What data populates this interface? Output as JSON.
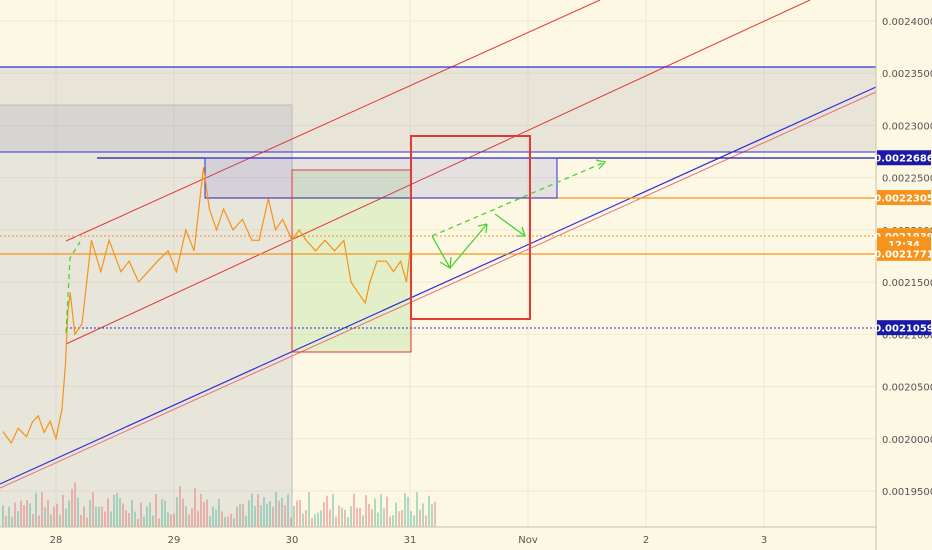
{
  "chart_data": {
    "type": "line",
    "title": "",
    "y_range": [
      0.00191,
      0.002425
    ],
    "x_range": [
      27.55,
      31.0
    ],
    "y_ticks": [
      "0.0024000",
      "0.0023500",
      "0.0023000",
      "0.0022500",
      "0.0022000",
      "0.0021500",
      "0.0021000",
      "0.0020500",
      "0.0020000",
      "0.0019500"
    ],
    "y_tick_values": [
      0.0024,
      0.00235,
      0.0023,
      0.00225,
      0.0022,
      0.00215,
      0.0021,
      0.00205,
      0.002,
      0.00195
    ],
    "x_ticks": [
      "28",
      "29",
      "30",
      "31",
      "Nov",
      "2",
      "3"
    ],
    "x_tick_values": [
      28,
      29,
      30,
      31,
      32,
      33,
      34
    ],
    "price_labels": [
      {
        "text": "0.0022686",
        "value": 0.0022686,
        "color": "#1a1aa6"
      },
      {
        "text": "0.0022305",
        "value": 0.0022305,
        "color": "#f7931a"
      },
      {
        "text": "0.0021939",
        "value": 0.0021939,
        "color": "#f7931a"
      },
      {
        "text": "12:34",
        "value": 0.002186,
        "color": "#f7931a"
      },
      {
        "text": "0.0021771",
        "value": 0.0021771,
        "color": "#f7931a"
      },
      {
        "text": "0.0021059",
        "value": 0.0021059,
        "color": "#1a1aa6"
      }
    ],
    "series": [
      {
        "values": [
          [
            27.55,
            0.002007
          ],
          [
            27.62,
            0.001996
          ],
          [
            27.68,
            0.00201
          ],
          [
            27.75,
            0.002002
          ],
          [
            27.8,
            0.002016
          ],
          [
            27.85,
            0.002022
          ],
          [
            27.9,
            0.002006
          ],
          [
            27.95,
            0.002017
          ],
          [
            28.0,
            0.002
          ],
          [
            28.05,
            0.002028
          ],
          [
            28.08,
            0.00207
          ],
          [
            28.1,
            0.00212
          ],
          [
            28.12,
            0.00214
          ],
          [
            28.16,
            0.0021
          ],
          [
            28.22,
            0.00211
          ],
          [
            28.3,
            0.00219
          ],
          [
            28.38,
            0.00216
          ],
          [
            28.45,
            0.00219
          ],
          [
            28.55,
            0.00216
          ],
          [
            28.62,
            0.00217
          ],
          [
            28.7,
            0.00215
          ],
          [
            28.78,
            0.00216
          ],
          [
            28.86,
            0.00217
          ],
          [
            28.95,
            0.00218
          ],
          [
            29.02,
            0.00216
          ],
          [
            29.1,
            0.0022
          ],
          [
            29.17,
            0.00218
          ],
          [
            29.25,
            0.00226
          ],
          [
            29.3,
            0.00222
          ],
          [
            29.36,
            0.0022
          ],
          [
            29.42,
            0.00222
          ],
          [
            29.5,
            0.0022
          ],
          [
            29.58,
            0.00221
          ],
          [
            29.66,
            0.00219
          ],
          [
            29.72,
            0.00219
          ],
          [
            29.8,
            0.00223
          ],
          [
            29.86,
            0.0022
          ],
          [
            29.92,
            0.00221
          ],
          [
            30.0,
            0.00219
          ],
          [
            30.06,
            0.0022
          ],
          [
            30.12,
            0.00219
          ],
          [
            30.2,
            0.00218
          ],
          [
            30.28,
            0.00219
          ],
          [
            30.36,
            0.00218
          ],
          [
            30.44,
            0.00219
          ],
          [
            30.5,
            0.00215
          ],
          [
            30.56,
            0.00214
          ],
          [
            30.62,
            0.00213
          ],
          [
            30.66,
            0.00215
          ],
          [
            30.72,
            0.00217
          ],
          [
            30.8,
            0.00217
          ],
          [
            30.86,
            0.00216
          ],
          [
            30.92,
            0.00217
          ],
          [
            30.97,
            0.00215
          ],
          [
            31.0,
            0.00218
          ]
        ]
      }
    ]
  },
  "icons": [
    "projection-arrow"
  ]
}
